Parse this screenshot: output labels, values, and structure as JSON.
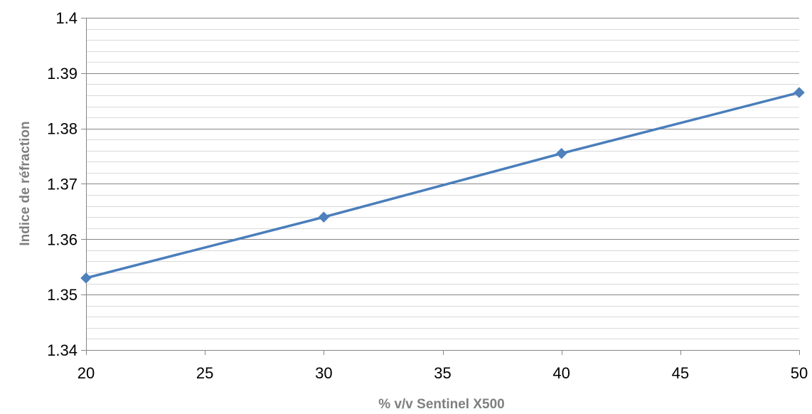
{
  "chart_data": {
    "type": "line",
    "title": "",
    "xlabel": "% v/v Sentinel X500",
    "ylabel": "Indice de réfraction",
    "xlim": [
      20,
      50
    ],
    "ylim": [
      1.34,
      1.4
    ],
    "x_major_ticks": [
      20,
      25,
      30,
      35,
      40,
      45,
      50
    ],
    "x_tick_labels": [
      "20",
      "25",
      "30",
      "35",
      "40",
      "45",
      "50"
    ],
    "y_major_ticks": [
      1.34,
      1.35,
      1.36,
      1.37,
      1.38,
      1.39,
      1.4
    ],
    "y_tick_labels": [
      "1.34",
      "1.35",
      "1.36",
      "1.37",
      "1.38",
      "1.39",
      "1.4"
    ],
    "y_minor_step": 0.002,
    "grid": {
      "major": true,
      "minor": true,
      "axis": "y"
    },
    "legend": "none",
    "marker": "diamond",
    "series": [
      {
        "x": [
          20,
          30,
          40,
          50
        ],
        "values": [
          1.353,
          1.364,
          1.3755,
          1.3865
        ]
      }
    ],
    "colors": {
      "series": "#4a7ebb",
      "marker": "#4f81bd",
      "major_grid": "#868686",
      "minor_grid": "#d9d9d9",
      "axis_title": "#7f7f7f"
    }
  }
}
